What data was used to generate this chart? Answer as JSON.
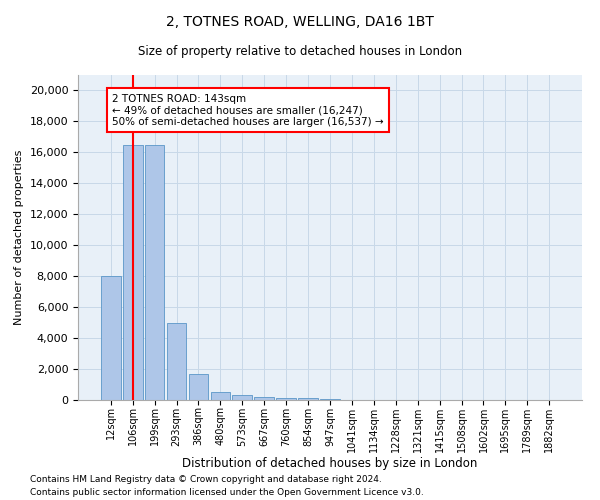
{
  "title1": "2, TOTNES ROAD, WELLING, DA16 1BT",
  "title2": "Size of property relative to detached houses in London",
  "xlabel": "Distribution of detached houses by size in London",
  "ylabel": "Number of detached properties",
  "categories": [
    "12sqm",
    "106sqm",
    "199sqm",
    "293sqm",
    "386sqm",
    "480sqm",
    "573sqm",
    "667sqm",
    "760sqm",
    "854sqm",
    "947sqm",
    "1041sqm",
    "1134sqm",
    "1228sqm",
    "1321sqm",
    "1415sqm",
    "1508sqm",
    "1602sqm",
    "1695sqm",
    "1789sqm",
    "1882sqm"
  ],
  "values": [
    8000,
    16500,
    16500,
    5000,
    1700,
    500,
    350,
    200,
    150,
    100,
    70,
    0,
    0,
    0,
    0,
    0,
    0,
    0,
    0,
    0,
    0
  ],
  "bar_color": "#aec6e8",
  "bar_edge_color": "#5a96c8",
  "redline_x": 1.0,
  "annotation_text": "2 TOTNES ROAD: 143sqm\n← 49% of detached houses are smaller (16,247)\n50% of semi-detached houses are larger (16,537) →",
  "annotation_box_color": "white",
  "annotation_box_edge": "red",
  "redline_color": "red",
  "grid_color": "#c8d8e8",
  "background_color": "#e8f0f8",
  "footer1": "Contains HM Land Registry data © Crown copyright and database right 2024.",
  "footer2": "Contains public sector information licensed under the Open Government Licence v3.0.",
  "ylim": [
    0,
    21000
  ],
  "yticks": [
    0,
    2000,
    4000,
    6000,
    8000,
    10000,
    12000,
    14000,
    16000,
    18000,
    20000
  ]
}
